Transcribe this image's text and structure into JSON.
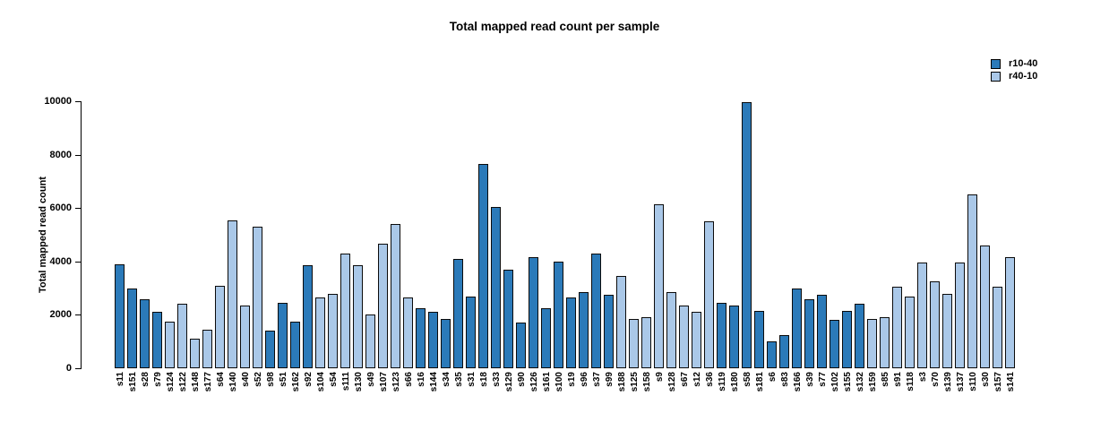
{
  "title": "Total mapped read count per sample",
  "ylabel": "Total mapped read count",
  "legend": [
    {
      "label": "r10-40",
      "color": "#2b7ab9"
    },
    {
      "label": "r40-10",
      "color": "#aac8e8"
    }
  ],
  "chart_data": {
    "type": "bar",
    "title": "Total mapped read count per sample",
    "xlabel": "",
    "ylabel": "Total mapped read count",
    "ylim": [
      0,
      10000
    ],
    "yticks": [
      0,
      2000,
      4000,
      6000,
      8000,
      10000
    ],
    "grid": false,
    "legend_position": "top-right",
    "series_colors": {
      "r10-40": "#2b7ab9",
      "r40-10": "#aac8e8"
    },
    "bar_border_color": "#0b0b0b",
    "samples": [
      {
        "label": "s11",
        "value": 3900,
        "group": "r10-40"
      },
      {
        "label": "s151",
        "value": 3000,
        "group": "r10-40"
      },
      {
        "label": "s28",
        "value": 2600,
        "group": "r10-40"
      },
      {
        "label": "s79",
        "value": 2100,
        "group": "r10-40"
      },
      {
        "label": "s124",
        "value": 1750,
        "group": "r40-10"
      },
      {
        "label": "s122",
        "value": 2400,
        "group": "r40-10"
      },
      {
        "label": "s148",
        "value": 1100,
        "group": "r40-10"
      },
      {
        "label": "s177",
        "value": 1450,
        "group": "r40-10"
      },
      {
        "label": "s64",
        "value": 3100,
        "group": "r40-10"
      },
      {
        "label": "s140",
        "value": 5550,
        "group": "r40-10"
      },
      {
        "label": "s40",
        "value": 2350,
        "group": "r40-10"
      },
      {
        "label": "s52",
        "value": 5300,
        "group": "r40-10"
      },
      {
        "label": "s98",
        "value": 1400,
        "group": "r10-40"
      },
      {
        "label": "s51",
        "value": 2450,
        "group": "r10-40"
      },
      {
        "label": "s162",
        "value": 1750,
        "group": "r10-40"
      },
      {
        "label": "s92",
        "value": 3850,
        "group": "r10-40"
      },
      {
        "label": "s104",
        "value": 2650,
        "group": "r40-10"
      },
      {
        "label": "s54",
        "value": 2800,
        "group": "r40-10"
      },
      {
        "label": "s111",
        "value": 4300,
        "group": "r40-10"
      },
      {
        "label": "s130",
        "value": 3850,
        "group": "r40-10"
      },
      {
        "label": "s49",
        "value": 2000,
        "group": "r40-10"
      },
      {
        "label": "s107",
        "value": 4650,
        "group": "r40-10"
      },
      {
        "label": "s123",
        "value": 5400,
        "group": "r40-10"
      },
      {
        "label": "s66",
        "value": 2650,
        "group": "r40-10"
      },
      {
        "label": "s16",
        "value": 2250,
        "group": "r10-40"
      },
      {
        "label": "s144",
        "value": 2100,
        "group": "r10-40"
      },
      {
        "label": "s34",
        "value": 1850,
        "group": "r10-40"
      },
      {
        "label": "s35",
        "value": 4100,
        "group": "r10-40"
      },
      {
        "label": "s31",
        "value": 2700,
        "group": "r10-40"
      },
      {
        "label": "s18",
        "value": 7650,
        "group": "r10-40"
      },
      {
        "label": "s33",
        "value": 6050,
        "group": "r10-40"
      },
      {
        "label": "s129",
        "value": 3700,
        "group": "r10-40"
      },
      {
        "label": "s90",
        "value": 1700,
        "group": "r10-40"
      },
      {
        "label": "s126",
        "value": 4150,
        "group": "r10-40"
      },
      {
        "label": "s161",
        "value": 2250,
        "group": "r10-40"
      },
      {
        "label": "s100",
        "value": 4000,
        "group": "r10-40"
      },
      {
        "label": "s19",
        "value": 2650,
        "group": "r10-40"
      },
      {
        "label": "s96",
        "value": 2850,
        "group": "r10-40"
      },
      {
        "label": "s37",
        "value": 4300,
        "group": "r10-40"
      },
      {
        "label": "s99",
        "value": 2750,
        "group": "r10-40"
      },
      {
        "label": "s188",
        "value": 3450,
        "group": "r40-10"
      },
      {
        "label": "s125",
        "value": 1850,
        "group": "r40-10"
      },
      {
        "label": "s158",
        "value": 1900,
        "group": "r40-10"
      },
      {
        "label": "s9",
        "value": 6150,
        "group": "r40-10"
      },
      {
        "label": "s128",
        "value": 2850,
        "group": "r40-10"
      },
      {
        "label": "s67",
        "value": 2350,
        "group": "r40-10"
      },
      {
        "label": "s12",
        "value": 2100,
        "group": "r40-10"
      },
      {
        "label": "s36",
        "value": 5500,
        "group": "r40-10"
      },
      {
        "label": "s119",
        "value": 2450,
        "group": "r10-40"
      },
      {
        "label": "s180",
        "value": 2350,
        "group": "r10-40"
      },
      {
        "label": "s58",
        "value": 9950,
        "group": "r10-40"
      },
      {
        "label": "s181",
        "value": 2150,
        "group": "r10-40"
      },
      {
        "label": "s6",
        "value": 1000,
        "group": "r10-40"
      },
      {
        "label": "s83",
        "value": 1250,
        "group": "r10-40"
      },
      {
        "label": "s166",
        "value": 3000,
        "group": "r10-40"
      },
      {
        "label": "s39",
        "value": 2600,
        "group": "r10-40"
      },
      {
        "label": "s77",
        "value": 2750,
        "group": "r10-40"
      },
      {
        "label": "s102",
        "value": 1800,
        "group": "r10-40"
      },
      {
        "label": "s155",
        "value": 2150,
        "group": "r10-40"
      },
      {
        "label": "s132",
        "value": 2400,
        "group": "r10-40"
      },
      {
        "label": "s159",
        "value": 1850,
        "group": "r40-10"
      },
      {
        "label": "s85",
        "value": 1900,
        "group": "r40-10"
      },
      {
        "label": "s91",
        "value": 3050,
        "group": "r40-10"
      },
      {
        "label": "s118",
        "value": 2700,
        "group": "r40-10"
      },
      {
        "label": "s3",
        "value": 3950,
        "group": "r40-10"
      },
      {
        "label": "s70",
        "value": 3250,
        "group": "r40-10"
      },
      {
        "label": "s139",
        "value": 2800,
        "group": "r40-10"
      },
      {
        "label": "s137",
        "value": 3950,
        "group": "r40-10"
      },
      {
        "label": "s110",
        "value": 6500,
        "group": "r40-10"
      },
      {
        "label": "s30",
        "value": 4600,
        "group": "r40-10"
      },
      {
        "label": "s157",
        "value": 3050,
        "group": "r40-10"
      },
      {
        "label": "s141",
        "value": 4150,
        "group": "r40-10"
      }
    ]
  }
}
